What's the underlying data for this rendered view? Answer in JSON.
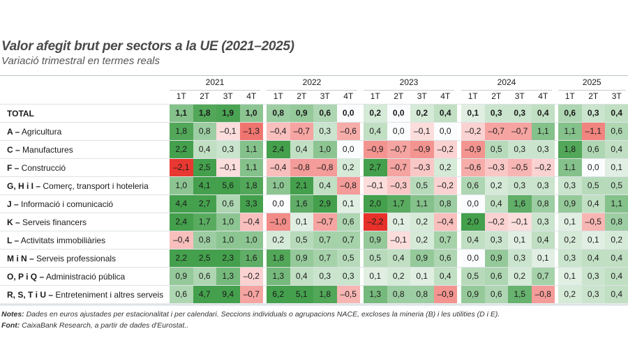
{
  "title": "Valor afegit brut per sectors a la UE (2021–2025)",
  "subtitle": "Variació trimestral en termes reals",
  "notes_label": "Notes:",
  "notes_text": " Dades en euros ajustades per estacionalitat i per calendari. Seccions individuals o agrupacions NACE, excloses la mineria (B) i les utilities (D i E).",
  "source_label": "Font:",
  "source_text": " CaixaBank Research, a partir de dades d'Eurostat..",
  "chart_data": {
    "type": "heatmap",
    "colors": {
      "positive": "#44a04c",
      "negative": "#e8312a",
      "neutral": "#ffffff"
    },
    "years": [
      {
        "year": "2021",
        "quarters": [
          "1T",
          "2T",
          "3T",
          "4T"
        ]
      },
      {
        "year": "2022",
        "quarters": [
          "1T",
          "2T",
          "3T",
          "4T"
        ]
      },
      {
        "year": "2023",
        "quarters": [
          "1T",
          "2T",
          "3T",
          "4T"
        ]
      },
      {
        "year": "2024",
        "quarters": [
          "1T",
          "2T",
          "3T",
          "4T"
        ]
      },
      {
        "year": "2025",
        "quarters": [
          "1T",
          "2T",
          "3T"
        ]
      }
    ],
    "rows": [
      {
        "code": "TOTAL",
        "name": "",
        "bold": true,
        "values": [
          1.1,
          1.8,
          1.9,
          1.0,
          0.8,
          0.9,
          0.6,
          0.0,
          0.2,
          0.0,
          0.2,
          0.4,
          0.1,
          0.3,
          0.3,
          0.4,
          0.6,
          0.3,
          0.4
        ]
      },
      {
        "code": "A –",
        "name": " Agricultura",
        "values": [
          1.8,
          0.8,
          -0.1,
          -1.3,
          -0.4,
          -0.7,
          0.3,
          -0.6,
          0.4,
          0.0,
          -0.1,
          0.0,
          -0.2,
          -0.7,
          -0.7,
          1.1,
          1.1,
          -1.1,
          0.6
        ]
      },
      {
        "code": "C –",
        "name": " Manufactures",
        "values": [
          2.2,
          0.4,
          0.3,
          1.1,
          2.4,
          0.4,
          1.0,
          0.0,
          -0.9,
          -0.7,
          -0.9,
          -0.2,
          -0.9,
          0.5,
          0.3,
          0.3,
          1.8,
          0.6,
          0.4
        ]
      },
      {
        "code": "F –",
        "name": " Construcció",
        "values": [
          -2.1,
          2.5,
          -0.1,
          1.1,
          -0.4,
          -0.8,
          -0.8,
          0.2,
          2.7,
          -0.7,
          -0.3,
          0.2,
          -0.6,
          -0.3,
          -0.5,
          -0.2,
          1.1,
          0.0,
          0.1
        ]
      },
      {
        "code": "G, H i I –",
        "name": " Comerç, transport i hoteleria",
        "values": [
          1.0,
          4.1,
          5.6,
          1.8,
          1.0,
          2.1,
          0.4,
          -0.8,
          -0.1,
          -0.3,
          0.5,
          -0.2,
          0.6,
          0.2,
          0.3,
          0.3,
          0.3,
          0.5,
          0.5
        ]
      },
      {
        "code": "J –",
        "name": " Informació i comunicació",
        "values": [
          4.4,
          2.7,
          0.6,
          3.3,
          0.0,
          1.6,
          2.9,
          0.1,
          2.0,
          1.7,
          1.1,
          0.8,
          0.0,
          0.4,
          1.6,
          0.8,
          0.9,
          0.4,
          1.1
        ]
      },
      {
        "code": "K –",
        "name": " Serveis financers",
        "values": [
          2.4,
          1.7,
          1.0,
          -0.4,
          -1.0,
          0.1,
          -0.7,
          0.6,
          -2.2,
          0.1,
          0.2,
          -0.4,
          2.0,
          -0.2,
          -0.1,
          0.3,
          0.1,
          -0.5,
          0.8
        ]
      },
      {
        "code": "L –",
        "name": " Activitats immobiliàries",
        "values": [
          -0.4,
          0.8,
          1.0,
          1.0,
          0.2,
          0.5,
          0.7,
          0.7,
          0.9,
          -0.1,
          0.2,
          0.7,
          0.4,
          0.3,
          0.1,
          0.4,
          0.2,
          0.1,
          0.2
        ]
      },
      {
        "code": "M i N –",
        "name": " Serveis professionals",
        "values": [
          2.2,
          2.5,
          2.3,
          1.6,
          1.8,
          0.9,
          0.7,
          0.5,
          0.5,
          0.4,
          0.9,
          0.6,
          0.0,
          0.9,
          0.3,
          0.1,
          0.3,
          0.4,
          0.4
        ]
      },
      {
        "code": "O, P i Q –",
        "name": " Administració pública",
        "values": [
          0.9,
          0.6,
          1.3,
          -0.2,
          1.3,
          0.4,
          0.3,
          0.3,
          0.1,
          0.2,
          0.1,
          0.4,
          0.5,
          0.6,
          0.2,
          0.7,
          0.1,
          0.3,
          0.4
        ]
      },
      {
        "code": "R, S, T i U –",
        "name": " Entreteniment i altres serveis",
        "values": [
          0.6,
          4.7,
          9.4,
          -0.7,
          6.2,
          5.1,
          1.8,
          -0.5,
          1.3,
          0.8,
          0.8,
          -0.9,
          0.9,
          0.6,
          1.5,
          -0.8,
          0.2,
          0.3,
          0.4
        ]
      }
    ]
  }
}
